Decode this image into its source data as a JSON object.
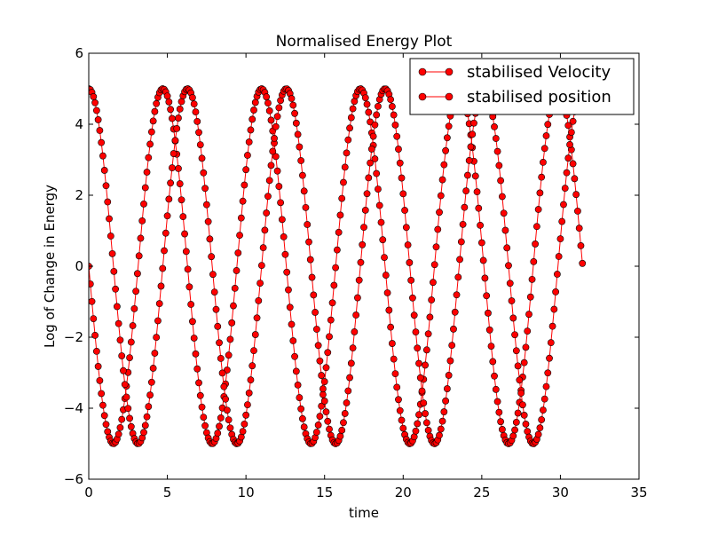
{
  "chart_data": {
    "type": "line",
    "title": "Normalised Energy Plot",
    "xlabel": "time",
    "ylabel": "Log of Change in Energy",
    "xlim": [
      0,
      35
    ],
    "ylim": [
      -6,
      6
    ],
    "x_ticks": [
      0,
      5,
      10,
      15,
      20,
      25,
      30,
      35
    ],
    "y_ticks": [
      -6,
      -4,
      -2,
      0,
      2,
      4,
      6
    ],
    "grid": false,
    "legend_position": "top-right",
    "x_range": [
      0,
      31.4
    ],
    "samples": 315,
    "marker": "circle",
    "series": [
      {
        "name": "stabilised Velocity",
        "formula": "-5*sin(t)",
        "color": "#ff0000",
        "values_at": {
          "0": 0,
          "1.571": -5,
          "4.712": 5,
          "7.854": -5,
          "11.0": 5,
          "14.14": -5,
          "17.28": 5,
          "20.42": -5,
          "23.56": 5,
          "26.70": -5,
          "29.85": 5,
          "31.4": 0.01
        }
      },
      {
        "name": "stabilised position",
        "formula": "5*cos(t)",
        "color": "#ff0000",
        "values_at": {
          "0": 5,
          "3.142": -5,
          "6.283": 5,
          "9.425": -5,
          "12.57": 5,
          "15.71": -5,
          "18.85": 5,
          "21.99": -5,
          "25.13": 5,
          "28.27": -5,
          "31.4": 5
        }
      }
    ]
  }
}
